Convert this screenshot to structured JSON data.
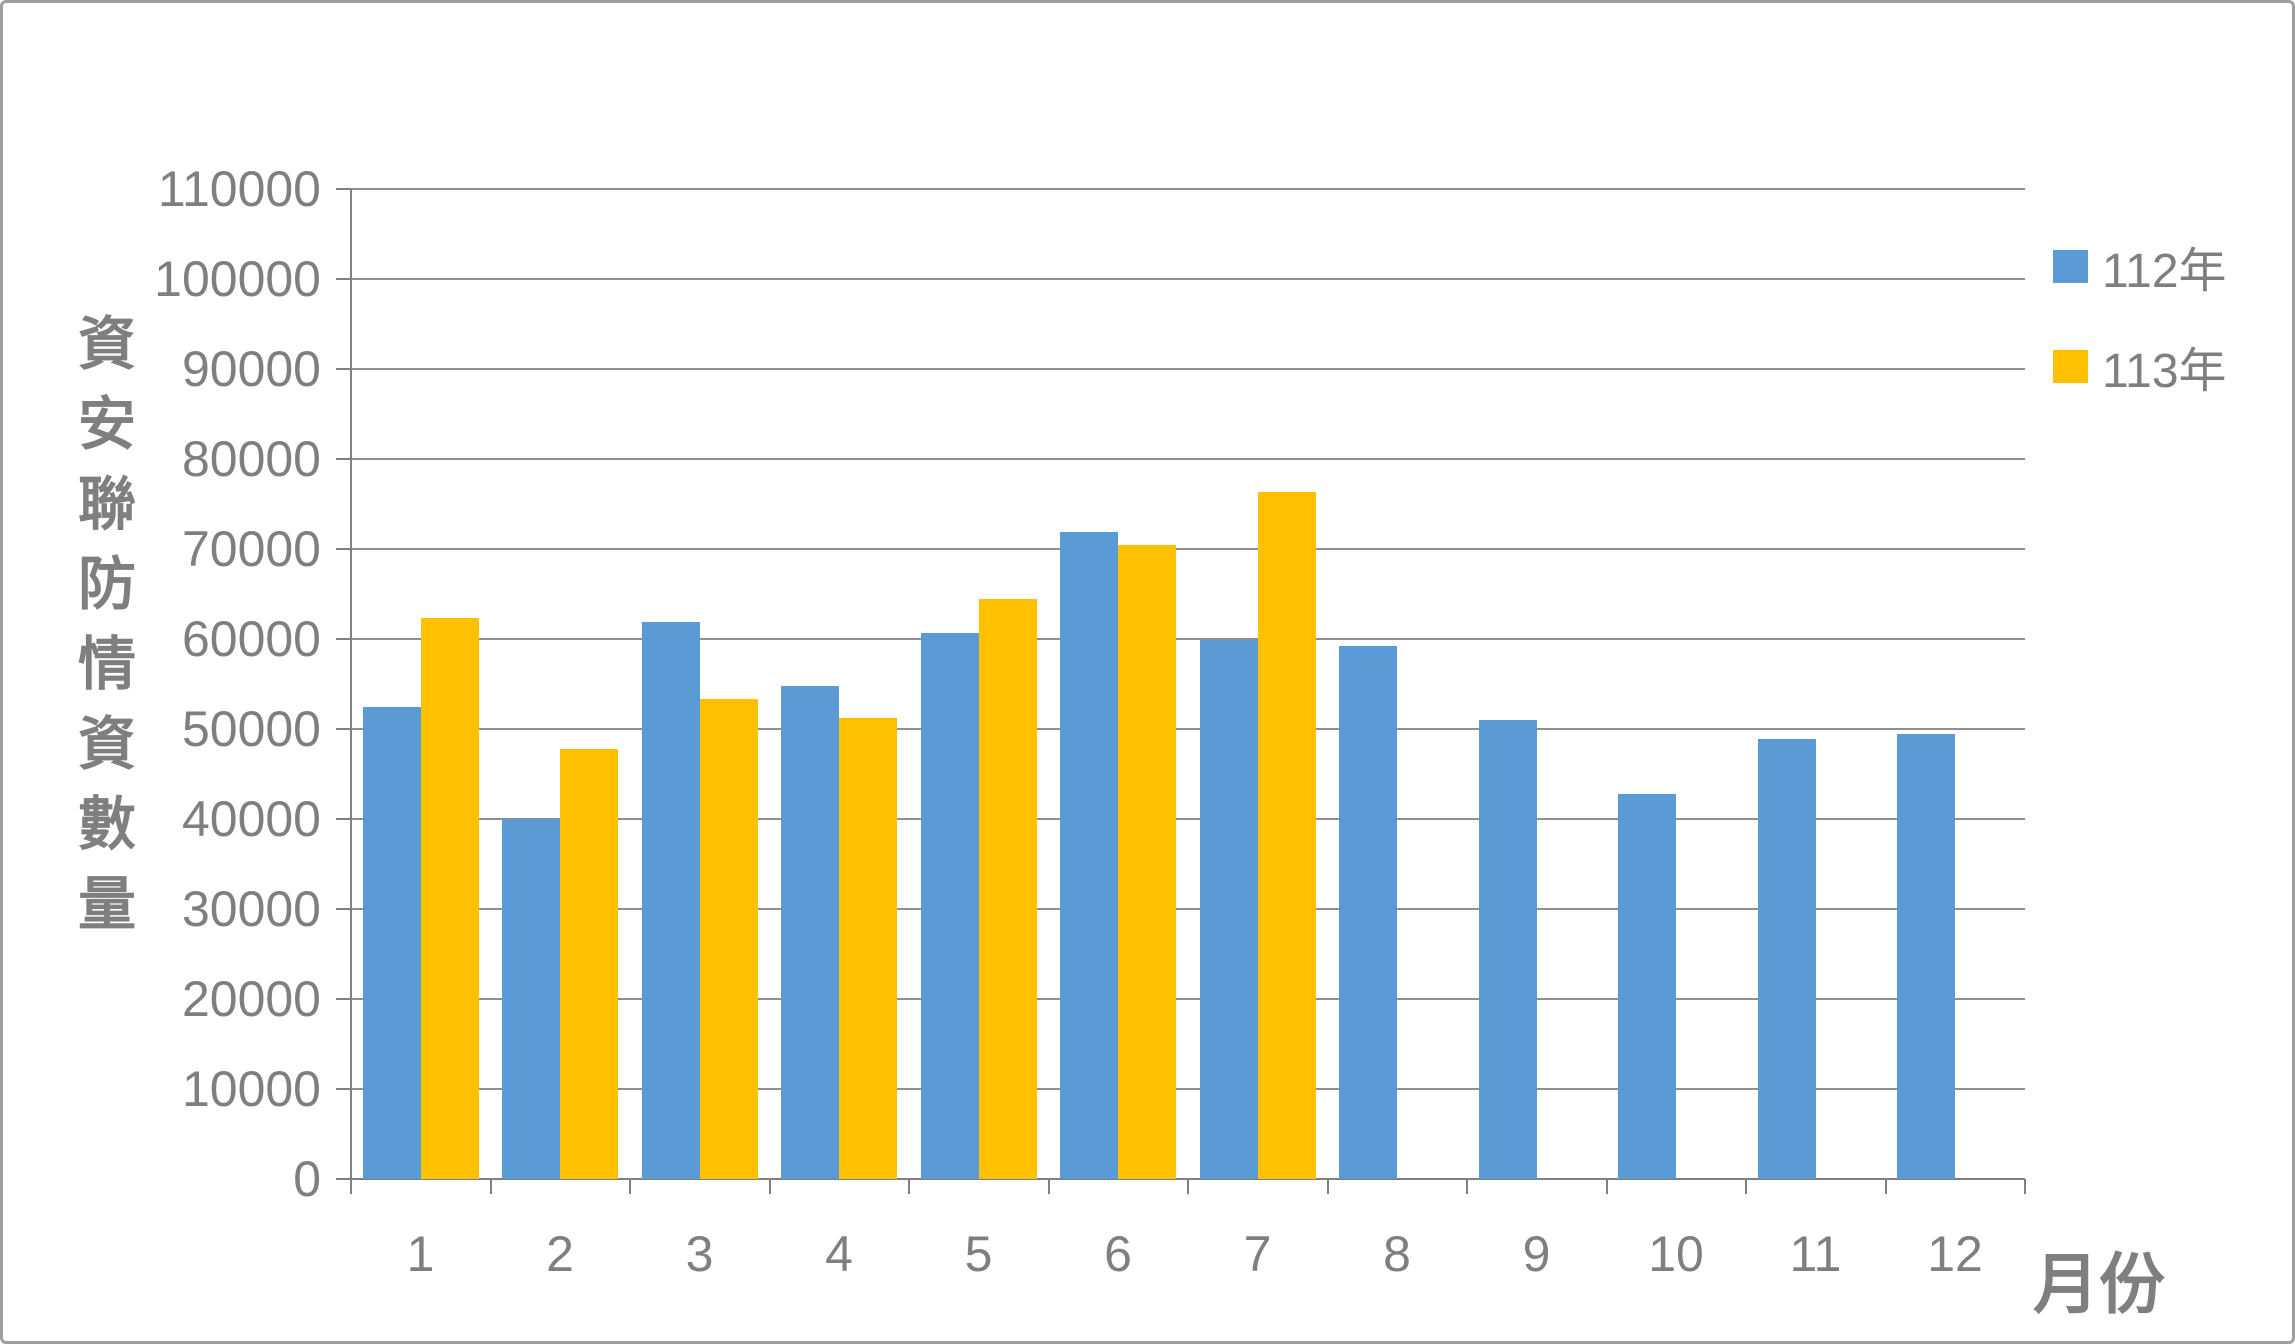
{
  "chart_data": {
    "type": "bar",
    "title": "",
    "categories": [
      "1",
      "2",
      "3",
      "4",
      "5",
      "6",
      "7",
      "8",
      "9",
      "10",
      "11",
      "12"
    ],
    "series": [
      {
        "name": "112年",
        "color": "#5B9BD5",
        "values": [
          52400,
          40000,
          61900,
          54800,
          60700,
          71900,
          59900,
          59200,
          51000,
          42800,
          48900,
          49400
        ]
      },
      {
        "name": "113年",
        "color": "#FFC000",
        "values": [
          62300,
          47800,
          53300,
          51200,
          64400,
          70500,
          76300,
          null,
          null,
          null,
          null,
          null
        ]
      }
    ],
    "xlabel": "月份",
    "ylabel": "資安聯防情資數量",
    "ylim": [
      0,
      110000
    ],
    "ytick_step": 10000,
    "ytick_labels": [
      "0",
      "10000",
      "20000",
      "30000",
      "40000",
      "50000",
      "60000",
      "70000",
      "80000",
      "90000",
      "100000",
      "110000"
    ],
    "grid": true,
    "legend_position": "right-top"
  },
  "legend": {
    "items": [
      {
        "label": "112年",
        "color": "#5B9BD5"
      },
      {
        "label": "113年",
        "color": "#FFC000"
      }
    ]
  },
  "axes": {
    "x_title": "月份",
    "y_title": "資安聯防情資數量"
  },
  "colors": {
    "series1": "#5B9BD5",
    "series2": "#FFC000",
    "gridline": "#8f8f8f",
    "axis": "#808080",
    "text": "#7f7f7f",
    "border": "#9e9e9e",
    "background": "#ffffff"
  }
}
